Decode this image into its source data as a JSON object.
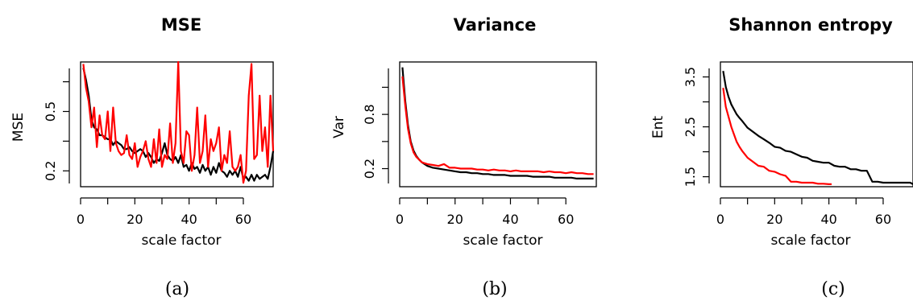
{
  "chart_data": [
    {
      "type": "line",
      "title": "MSE",
      "xlabel": "scale factor",
      "ylabel": "MSE",
      "panel_label": "(a)",
      "xlim": [
        0,
        71
      ],
      "ylim": [
        0.12,
        0.75
      ],
      "xticks": [
        0,
        20,
        40,
        60
      ],
      "xtick_labels": [
        "0",
        "20",
        "40",
        "60"
      ],
      "yticks": [
        0.2,
        0.5
      ],
      "ytick_labels": [
        "0.2",
        "0.5"
      ],
      "series": [
        {
          "color": "#000000",
          "x": [
            1,
            2,
            3,
            4,
            5,
            6,
            7,
            8,
            9,
            10,
            11,
            12,
            13,
            14,
            15,
            16,
            17,
            18,
            19,
            20,
            21,
            22,
            23,
            24,
            25,
            26,
            27,
            28,
            29,
            30,
            31,
            32,
            33,
            34,
            35,
            36,
            37,
            38,
            39,
            40,
            41,
            42,
            43,
            44,
            45,
            46,
            47,
            48,
            49,
            50,
            51,
            52,
            53,
            54,
            55,
            56,
            57,
            58,
            59,
            60,
            61,
            62,
            63,
            64,
            65,
            66,
            67,
            68,
            69,
            70,
            71
          ],
          "y": [
            0.72,
            0.66,
            0.58,
            0.46,
            0.42,
            0.41,
            0.38,
            0.38,
            0.37,
            0.36,
            0.36,
            0.33,
            0.35,
            0.34,
            0.33,
            0.31,
            0.31,
            0.32,
            0.3,
            0.29,
            0.3,
            0.31,
            0.3,
            0.27,
            0.29,
            0.27,
            0.24,
            0.26,
            0.25,
            0.29,
            0.34,
            0.28,
            0.26,
            0.25,
            0.27,
            0.24,
            0.28,
            0.22,
            0.23,
            0.2,
            0.24,
            0.21,
            0.22,
            0.19,
            0.23,
            0.2,
            0.22,
            0.18,
            0.22,
            0.19,
            0.24,
            0.2,
            0.19,
            0.17,
            0.2,
            0.18,
            0.2,
            0.17,
            0.22,
            0.16,
            0.17,
            0.15,
            0.18,
            0.15,
            0.18,
            0.16,
            0.17,
            0.18,
            0.16,
            0.22,
            0.3
          ]
        },
        {
          "color": "#ff0000",
          "x": [
            1,
            2,
            3,
            4,
            5,
            6,
            7,
            8,
            9,
            10,
            11,
            12,
            13,
            14,
            15,
            16,
            17,
            18,
            19,
            20,
            21,
            22,
            23,
            24,
            25,
            26,
            27,
            28,
            29,
            30,
            31,
            32,
            33,
            34,
            35,
            36,
            37,
            38,
            39,
            40,
            41,
            42,
            43,
            44,
            45,
            46,
            47,
            48,
            49,
            50,
            51,
            52,
            53,
            54,
            55,
            56,
            57,
            58,
            59,
            60,
            61,
            62,
            63,
            64,
            65,
            66,
            67,
            68,
            69,
            70,
            71
          ],
          "y": [
            0.74,
            0.62,
            0.55,
            0.42,
            0.52,
            0.32,
            0.48,
            0.38,
            0.36,
            0.5,
            0.3,
            0.52,
            0.34,
            0.3,
            0.28,
            0.29,
            0.38,
            0.28,
            0.26,
            0.34,
            0.22,
            0.27,
            0.3,
            0.35,
            0.26,
            0.22,
            0.36,
            0.24,
            0.41,
            0.22,
            0.28,
            0.26,
            0.44,
            0.24,
            0.34,
            0.75,
            0.3,
            0.24,
            0.4,
            0.38,
            0.2,
            0.28,
            0.52,
            0.24,
            0.3,
            0.48,
            0.22,
            0.36,
            0.3,
            0.34,
            0.42,
            0.2,
            0.28,
            0.24,
            0.4,
            0.22,
            0.2,
            0.22,
            0.28,
            0.14,
            0.2,
            0.58,
            0.74,
            0.26,
            0.28,
            0.58,
            0.3,
            0.42,
            0.22,
            0.58,
            0.3
          ]
        }
      ]
    },
    {
      "type": "line",
      "title": "Variance",
      "xlabel": "scale factor",
      "ylabel": "Var",
      "panel_label": "(b)",
      "xlim": [
        0,
        71
      ],
      "ylim": [
        0.0,
        1.38
      ],
      "xticks": [
        0,
        20,
        40,
        60
      ],
      "xtick_labels": [
        "0",
        "20",
        "40",
        "60"
      ],
      "yticks": [
        0.2,
        0.8
      ],
      "ytick_labels": [
        "0.2",
        "0.8"
      ],
      "series": [
        {
          "color": "#000000",
          "x": [
            1,
            2,
            3,
            4,
            5,
            6,
            7,
            8,
            9,
            10,
            12,
            14,
            16,
            18,
            20,
            22,
            24,
            26,
            28,
            30,
            32,
            34,
            36,
            38,
            40,
            42,
            44,
            46,
            48,
            50,
            52,
            54,
            56,
            58,
            60,
            62,
            64,
            66,
            68,
            70
          ],
          "y": [
            1.32,
            0.95,
            0.68,
            0.5,
            0.4,
            0.34,
            0.3,
            0.27,
            0.25,
            0.23,
            0.21,
            0.2,
            0.19,
            0.18,
            0.17,
            0.16,
            0.16,
            0.15,
            0.15,
            0.14,
            0.14,
            0.13,
            0.13,
            0.13,
            0.12,
            0.12,
            0.12,
            0.12,
            0.11,
            0.11,
            0.11,
            0.11,
            0.1,
            0.1,
            0.1,
            0.1,
            0.09,
            0.09,
            0.09,
            0.09
          ]
        },
        {
          "color": "#ff0000",
          "x": [
            1,
            2,
            3,
            4,
            5,
            6,
            7,
            8,
            9,
            10,
            12,
            14,
            16,
            18,
            20,
            22,
            24,
            26,
            28,
            30,
            32,
            34,
            36,
            38,
            40,
            42,
            44,
            46,
            48,
            50,
            52,
            54,
            56,
            58,
            60,
            62,
            64,
            66,
            68,
            70
          ],
          "y": [
            1.22,
            0.9,
            0.64,
            0.48,
            0.38,
            0.33,
            0.3,
            0.27,
            0.26,
            0.25,
            0.24,
            0.23,
            0.25,
            0.21,
            0.21,
            0.2,
            0.2,
            0.2,
            0.19,
            0.19,
            0.18,
            0.19,
            0.18,
            0.18,
            0.17,
            0.18,
            0.17,
            0.17,
            0.17,
            0.17,
            0.16,
            0.17,
            0.16,
            0.16,
            0.15,
            0.16,
            0.15,
            0.15,
            0.14,
            0.14
          ]
        }
      ]
    },
    {
      "type": "line",
      "title": "Shannon entropy",
      "xlabel": "scale factor",
      "ylabel": "Ent",
      "panel_label": "(c)",
      "xlim": [
        0,
        71
      ],
      "ylim": [
        1.3,
        3.8
      ],
      "xticks": [
        0,
        20,
        40,
        60
      ],
      "xtick_labels": [
        "0",
        "20",
        "40",
        "60"
      ],
      "yticks": [
        1.5,
        2.5,
        3.5
      ],
      "ytick_labels": [
        "1.5",
        "2.5",
        "3.5"
      ],
      "series": [
        {
          "color": "#000000",
          "x": [
            1,
            2,
            3,
            4,
            5,
            6,
            7,
            8,
            9,
            10,
            12,
            14,
            16,
            18,
            20,
            22,
            24,
            26,
            28,
            30,
            32,
            34,
            36,
            38,
            40,
            42,
            44,
            46,
            48,
            50,
            52,
            54,
            56,
            58,
            60,
            62,
            64,
            66,
            68,
            70,
            71
          ],
          "y": [
            3.62,
            3.3,
            3.1,
            2.95,
            2.85,
            2.75,
            2.68,
            2.62,
            2.55,
            2.48,
            2.4,
            2.32,
            2.25,
            2.18,
            2.1,
            2.08,
            2.02,
            2.0,
            1.95,
            1.9,
            1.88,
            1.82,
            1.8,
            1.78,
            1.78,
            1.72,
            1.7,
            1.7,
            1.65,
            1.65,
            1.62,
            1.62,
            1.4,
            1.4,
            1.38,
            1.38,
            1.38,
            1.38,
            1.38,
            1.38,
            1.35
          ]
        },
        {
          "color": "#ff0000",
          "x": [
            1,
            2,
            3,
            4,
            5,
            6,
            7,
            8,
            9,
            10,
            12,
            14,
            16,
            18,
            20,
            22,
            24,
            26,
            28,
            30,
            32,
            34,
            36,
            38,
            40,
            41
          ],
          "y": [
            3.28,
            2.9,
            2.7,
            2.5,
            2.35,
            2.2,
            2.1,
            2.02,
            1.95,
            1.88,
            1.8,
            1.72,
            1.7,
            1.62,
            1.6,
            1.55,
            1.52,
            1.4,
            1.4,
            1.38,
            1.38,
            1.38,
            1.36,
            1.36,
            1.35,
            1.35
          ]
        }
      ]
    }
  ]
}
